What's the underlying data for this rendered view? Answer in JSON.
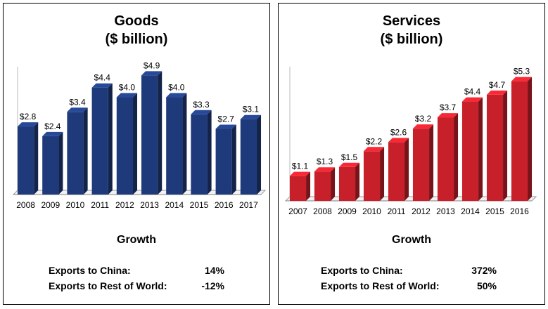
{
  "chart_data": [
    {
      "type": "bar",
      "title": "Goods",
      "subtitle": "($ billion)",
      "categories": [
        "2008",
        "2009",
        "2010",
        "2011",
        "2012",
        "2013",
        "2014",
        "2015",
        "2016",
        "2017"
      ],
      "values": [
        2.8,
        2.4,
        3.4,
        4.4,
        4.0,
        4.9,
        4.0,
        3.3,
        2.7,
        3.1
      ],
      "data_labels": [
        "$2.8",
        "$2.4",
        "$3.4",
        "$4.4",
        "$4.0",
        "$4.9",
        "$4.0",
        "$3.3",
        "$2.7",
        "$3.1"
      ],
      "color": "#1f3a7a",
      "ylim": [
        0,
        5.2
      ]
    },
    {
      "type": "bar",
      "title": "Services",
      "subtitle": "($ billion)",
      "categories": [
        "2007",
        "2008",
        "2009",
        "2010",
        "2011",
        "2012",
        "2013",
        "2014",
        "2015",
        "2016"
      ],
      "values": [
        1.1,
        1.3,
        1.5,
        2.2,
        2.6,
        3.2,
        3.7,
        4.4,
        4.7,
        5.3
      ],
      "data_labels": [
        "$1.1",
        "$1.3",
        "$1.5",
        "$2.2",
        "$2.6",
        "$3.2",
        "$3.7",
        "$4.4",
        "$4.7",
        "$5.3"
      ],
      "color": "#c8202a",
      "ylim": [
        0,
        5.6
      ]
    }
  ],
  "panels": {
    "goods": {
      "title": "Goods",
      "subtitle": "($ billion)",
      "growth_title": "Growth",
      "rows": [
        {
          "label": "Exports to China:",
          "value": "14%"
        },
        {
          "label": "Exports to Rest of World:",
          "value": "-12%"
        }
      ]
    },
    "services": {
      "title": "Services",
      "subtitle": "($ billion)",
      "growth_title": "Growth",
      "rows": [
        {
          "label": "Exports to China:",
          "value": "372%"
        },
        {
          "label": "Exports to Rest of World:",
          "value": "50%"
        }
      ]
    }
  }
}
